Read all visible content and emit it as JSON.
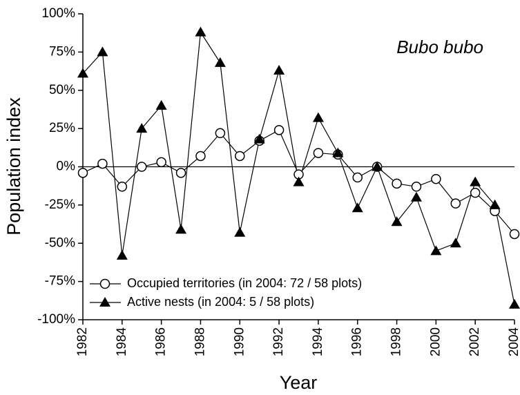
{
  "chart_data": {
    "type": "line",
    "y_label": "Population index",
    "x_label": "Year",
    "annotation": "Bubo bubo",
    "xlim": [
      1982,
      2004
    ],
    "xticks": [
      1982,
      1984,
      1986,
      1988,
      1990,
      1992,
      1994,
      1996,
      1998,
      2000,
      2002,
      2004
    ],
    "ylim": [
      -100,
      100
    ],
    "yticks": [
      {
        "value": -100,
        "label": "-100%"
      },
      {
        "value": -75,
        "label": "-75%"
      },
      {
        "value": -50,
        "label": "-50%"
      },
      {
        "value": -25,
        "label": "-25%"
      },
      {
        "value": 0,
        "label": "0%"
      },
      {
        "value": 25,
        "label": "25%"
      },
      {
        "value": 50,
        "label": "50%"
      },
      {
        "value": 75,
        "label": "75%"
      },
      {
        "value": 100,
        "label": "100%"
      }
    ],
    "x": [
      1982,
      1983,
      1984,
      1985,
      1986,
      1987,
      1988,
      1989,
      1990,
      1991,
      1992,
      1993,
      1994,
      1995,
      1996,
      1997,
      1998,
      1999,
      2000,
      2001,
      2002,
      2003,
      2004
    ],
    "series": [
      {
        "name": "Occupied territories (in 2004: 72 / 58 plots)",
        "color": "#000000",
        "marker": "circle",
        "values": [
          -4,
          2,
          -13,
          0,
          3,
          -4,
          7,
          22,
          7,
          17,
          24,
          -5,
          9,
          8,
          -7,
          0,
          -11,
          -13,
          -8,
          -24,
          -17,
          -29,
          -44
        ]
      },
      {
        "name": "Active nests (in 2004: 5 / 58 plots)",
        "color": "#000000",
        "marker": "triangle",
        "values": [
          61,
          75,
          -58,
          25,
          40,
          -41,
          88,
          68,
          -43,
          18,
          63,
          -10,
          32,
          9,
          -27,
          0,
          -36,
          -20,
          -55,
          -50,
          -10,
          -25,
          -90
        ]
      }
    ]
  }
}
